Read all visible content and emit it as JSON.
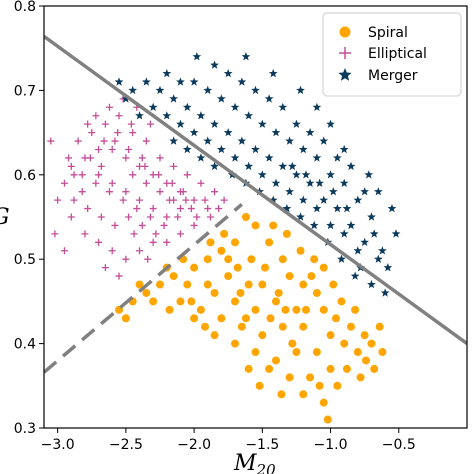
{
  "chart_data": {
    "type": "scatter",
    "title": "",
    "xlabel": "M",
    "xlabel_sub": "20",
    "ylabel": "G",
    "xlim": [
      -3.1,
      0.0
    ],
    "ylim": [
      0.3,
      0.8
    ],
    "xticks": [
      "-3.0",
      "-2.5",
      "-2.0",
      "-1.5",
      "-1.0",
      "-0.5"
    ],
    "yticks": [
      "0.3",
      "0.4",
      "0.5",
      "0.6",
      "0.7",
      "0.8"
    ],
    "grid": false,
    "legend": {
      "placement": "top-right",
      "entries": [
        {
          "name": "Spiral",
          "marker": "circle",
          "color": "#FFA500"
        },
        {
          "name": "Elliptical",
          "marker": "plus",
          "color": "#C44E98"
        },
        {
          "name": "Merger",
          "marker": "star",
          "color": "#0B3A5C"
        }
      ]
    },
    "series": [
      {
        "name": "Spiral",
        "marker": "circle",
        "color": "#FFA500",
        "points": [
          [
            -1.62,
            0.55
          ],
          [
            -1.55,
            0.54
          ],
          [
            -1.7,
            0.52
          ],
          [
            -1.8,
            0.51
          ],
          [
            -1.45,
            0.52
          ],
          [
            -1.35,
            0.5
          ],
          [
            -1.9,
            0.5
          ],
          [
            -2.0,
            0.49
          ],
          [
            -1.75,
            0.48
          ],
          [
            -1.6,
            0.47
          ],
          [
            -1.48,
            0.49
          ],
          [
            -1.3,
            0.48
          ],
          [
            -1.2,
            0.47
          ],
          [
            -1.1,
            0.46
          ],
          [
            -1.05,
            0.44
          ],
          [
            -1.25,
            0.44
          ],
          [
            -1.4,
            0.45
          ],
          [
            -1.55,
            0.44
          ],
          [
            -1.7,
            0.45
          ],
          [
            -1.85,
            0.46
          ],
          [
            -2.05,
            0.47
          ],
          [
            -2.15,
            0.48
          ],
          [
            -2.25,
            0.47
          ],
          [
            -2.35,
            0.46
          ],
          [
            -1.95,
            0.44
          ],
          [
            -1.8,
            0.43
          ],
          [
            -1.65,
            0.42
          ],
          [
            -1.5,
            0.41
          ],
          [
            -1.35,
            0.42
          ],
          [
            -1.2,
            0.42
          ],
          [
            -1.0,
            0.41
          ],
          [
            -0.9,
            0.4
          ],
          [
            -0.85,
            0.42
          ],
          [
            -0.8,
            0.39
          ],
          [
            -0.75,
            0.41
          ],
          [
            -0.7,
            0.4
          ],
          [
            -0.62,
            0.39
          ],
          [
            -1.1,
            0.39
          ],
          [
            -1.25,
            0.39
          ],
          [
            -1.4,
            0.38
          ],
          [
            -1.55,
            0.39
          ],
          [
            -1.7,
            0.4
          ],
          [
            -1.85,
            0.41
          ],
          [
            -2.0,
            0.43
          ],
          [
            -2.1,
            0.45
          ],
          [
            -1.3,
            0.36
          ],
          [
            -1.15,
            0.36
          ],
          [
            -1.0,
            0.37
          ],
          [
            -0.95,
            0.35
          ],
          [
            -1.05,
            0.33
          ],
          [
            -1.02,
            0.31
          ],
          [
            -1.45,
            0.37
          ],
          [
            -1.6,
            0.37
          ],
          [
            -0.88,
            0.37
          ],
          [
            -0.78,
            0.36
          ],
          [
            -0.68,
            0.37
          ],
          [
            -2.45,
            0.45
          ],
          [
            -2.55,
            0.44
          ],
          [
            -2.5,
            0.43
          ],
          [
            -1.75,
            0.5
          ],
          [
            -1.5,
            0.47
          ],
          [
            -1.38,
            0.46
          ],
          [
            -1.12,
            0.5
          ],
          [
            -1.05,
            0.49
          ],
          [
            -0.98,
            0.47
          ],
          [
            -0.92,
            0.45
          ],
          [
            -0.82,
            0.44
          ],
          [
            -1.9,
            0.47
          ],
          [
            -2.18,
            0.44
          ],
          [
            -2.3,
            0.45
          ],
          [
            -1.22,
            0.51
          ],
          [
            -1.32,
            0.53
          ],
          [
            -1.42,
            0.54
          ],
          [
            -1.58,
            0.5
          ],
          [
            -1.68,
            0.49
          ],
          [
            -1.78,
            0.53
          ],
          [
            -1.88,
            0.52
          ],
          [
            -2.08,
            0.5
          ],
          [
            -2.2,
            0.49
          ],
          [
            -1.28,
            0.4
          ],
          [
            -1.62,
            0.43
          ],
          [
            -1.44,
            0.43
          ],
          [
            -1.18,
            0.44
          ],
          [
            -0.96,
            0.43
          ],
          [
            -0.74,
            0.38
          ],
          [
            -0.64,
            0.42
          ],
          [
            -1.36,
            0.34
          ],
          [
            -1.52,
            0.35
          ],
          [
            -1.2,
            0.34
          ],
          [
            -1.08,
            0.35
          ],
          [
            -1.92,
            0.42
          ],
          [
            -2.02,
            0.45
          ],
          [
            -2.4,
            0.47
          ],
          [
            -1.66,
            0.46
          ],
          [
            -1.33,
            0.44
          ],
          [
            -1.14,
            0.48
          ]
        ]
      },
      {
        "name": "Elliptical",
        "marker": "plus",
        "color": "#C44E98",
        "points": [
          [
            -2.9,
            0.61
          ],
          [
            -2.8,
            0.62
          ],
          [
            -2.7,
            0.6
          ],
          [
            -2.6,
            0.59
          ],
          [
            -2.5,
            0.58
          ],
          [
            -2.4,
            0.57
          ],
          [
            -2.3,
            0.56
          ],
          [
            -2.2,
            0.55
          ],
          [
            -2.1,
            0.56
          ],
          [
            -2.0,
            0.57
          ],
          [
            -1.9,
            0.56
          ],
          [
            -2.85,
            0.64
          ],
          [
            -2.75,
            0.65
          ],
          [
            -2.65,
            0.66
          ],
          [
            -2.55,
            0.67
          ],
          [
            -2.45,
            0.65
          ],
          [
            -2.35,
            0.64
          ],
          [
            -2.25,
            0.62
          ],
          [
            -2.15,
            0.61
          ],
          [
            -2.05,
            0.6
          ],
          [
            -1.95,
            0.59
          ],
          [
            -1.85,
            0.58
          ],
          [
            -2.7,
            0.63
          ],
          [
            -2.6,
            0.63
          ],
          [
            -2.5,
            0.62
          ],
          [
            -2.4,
            0.61
          ],
          [
            -2.3,
            0.6
          ],
          [
            -2.2,
            0.59
          ],
          [
            -2.1,
            0.58
          ],
          [
            -2.0,
            0.54
          ],
          [
            -2.1,
            0.53
          ],
          [
            -2.2,
            0.52
          ],
          [
            -2.3,
            0.52
          ],
          [
            -2.4,
            0.51
          ],
          [
            -2.5,
            0.5
          ],
          [
            -2.6,
            0.51
          ],
          [
            -2.7,
            0.52
          ],
          [
            -2.8,
            0.53
          ],
          [
            -2.9,
            0.55
          ],
          [
            -3.0,
            0.57
          ],
          [
            -2.95,
            0.59
          ],
          [
            -2.88,
            0.57
          ],
          [
            -2.78,
            0.56
          ],
          [
            -2.68,
            0.55
          ],
          [
            -2.58,
            0.54
          ],
          [
            -2.48,
            0.55
          ],
          [
            -2.38,
            0.54
          ],
          [
            -2.28,
            0.53
          ],
          [
            -2.18,
            0.57
          ],
          [
            -2.08,
            0.58
          ],
          [
            -1.98,
            0.55
          ],
          [
            -1.88,
            0.55
          ],
          [
            -1.78,
            0.57
          ],
          [
            -2.62,
            0.68
          ],
          [
            -2.52,
            0.69
          ],
          [
            -2.42,
            0.68
          ],
          [
            -2.32,
            0.66
          ],
          [
            -2.72,
            0.67
          ],
          [
            -2.82,
            0.6
          ],
          [
            -2.92,
            0.62
          ],
          [
            -3.05,
            0.64
          ],
          [
            -3.02,
            0.53
          ],
          [
            -2.95,
            0.51
          ],
          [
            -2.65,
            0.49
          ],
          [
            -2.55,
            0.48
          ],
          [
            -2.45,
            0.6
          ],
          [
            -2.35,
            0.59
          ],
          [
            -2.25,
            0.58
          ],
          [
            -2.15,
            0.57
          ],
          [
            -2.58,
            0.64
          ],
          [
            -2.48,
            0.63
          ],
          [
            -2.78,
            0.66
          ],
          [
            -2.68,
            0.61
          ],
          [
            -2.38,
            0.62
          ],
          [
            -2.12,
            0.55
          ],
          [
            -2.02,
            0.56
          ],
          [
            -1.92,
            0.57
          ],
          [
            -1.82,
            0.56
          ],
          [
            -2.22,
            0.54
          ],
          [
            -2.32,
            0.55
          ],
          [
            -2.42,
            0.56
          ],
          [
            -2.52,
            0.57
          ],
          [
            -2.62,
            0.58
          ],
          [
            -2.72,
            0.59
          ],
          [
            -2.82,
            0.58
          ],
          [
            -2.88,
            0.6
          ],
          [
            -2.76,
            0.62
          ],
          [
            -2.66,
            0.64
          ],
          [
            -2.56,
            0.65
          ],
          [
            -2.46,
            0.66
          ],
          [
            -2.36,
            0.61
          ],
          [
            -2.26,
            0.6
          ],
          [
            -2.16,
            0.59
          ],
          [
            -2.06,
            0.57
          ],
          [
            -2.44,
            0.53
          ],
          [
            -2.34,
            0.5
          ]
        ]
      },
      {
        "name": "Merger",
        "marker": "star",
        "color": "#0B3A5C",
        "points": [
          [
            -2.45,
            0.7
          ],
          [
            -2.35,
            0.71
          ],
          [
            -2.25,
            0.7
          ],
          [
            -2.15,
            0.69
          ],
          [
            -2.05,
            0.68
          ],
          [
            -1.95,
            0.67
          ],
          [
            -1.85,
            0.66
          ],
          [
            -1.75,
            0.65
          ],
          [
            -1.65,
            0.64
          ],
          [
            -1.55,
            0.63
          ],
          [
            -1.45,
            0.62
          ],
          [
            -1.35,
            0.61
          ],
          [
            -1.25,
            0.6
          ],
          [
            -1.15,
            0.59
          ],
          [
            -1.05,
            0.57
          ],
          [
            -0.95,
            0.56
          ],
          [
            -0.85,
            0.54
          ],
          [
            -0.75,
            0.52
          ],
          [
            -0.65,
            0.5
          ],
          [
            -0.58,
            0.49
          ],
          [
            -2.2,
            0.72
          ],
          [
            -2.1,
            0.71
          ],
          [
            -2.0,
            0.71
          ],
          [
            -1.9,
            0.7
          ],
          [
            -1.8,
            0.69
          ],
          [
            -1.7,
            0.68
          ],
          [
            -1.6,
            0.67
          ],
          [
            -1.5,
            0.66
          ],
          [
            -1.4,
            0.65
          ],
          [
            -1.3,
            0.64
          ],
          [
            -1.2,
            0.63
          ],
          [
            -1.1,
            0.62
          ],
          [
            -1.0,
            0.6
          ],
          [
            -0.9,
            0.59
          ],
          [
            -0.8,
            0.57
          ],
          [
            -0.7,
            0.55
          ],
          [
            -2.3,
            0.68
          ],
          [
            -2.2,
            0.67
          ],
          [
            -2.1,
            0.66
          ],
          [
            -2.0,
            0.65
          ],
          [
            -1.9,
            0.64
          ],
          [
            -1.8,
            0.63
          ],
          [
            -1.7,
            0.62
          ],
          [
            -1.6,
            0.61
          ],
          [
            -1.5,
            0.6
          ],
          [
            -1.4,
            0.59
          ],
          [
            -1.3,
            0.58
          ],
          [
            -1.2,
            0.57
          ],
          [
            -1.1,
            0.56
          ],
          [
            -1.0,
            0.54
          ],
          [
            -0.9,
            0.53
          ],
          [
            -0.8,
            0.51
          ],
          [
            -1.85,
            0.73
          ],
          [
            -1.75,
            0.72
          ],
          [
            -1.65,
            0.71
          ],
          [
            -1.55,
            0.7
          ],
          [
            -1.45,
            0.69
          ],
          [
            -1.35,
            0.68
          ],
          [
            -1.25,
            0.66
          ],
          [
            -1.15,
            0.65
          ],
          [
            -1.05,
            0.64
          ],
          [
            -0.95,
            0.62
          ],
          [
            -0.85,
            0.61
          ],
          [
            -0.75,
            0.58
          ],
          [
            -1.1,
            0.68
          ],
          [
            -1.0,
            0.66
          ],
          [
            -0.9,
            0.63
          ],
          [
            -1.98,
            0.74
          ],
          [
            -1.62,
            0.74
          ],
          [
            -1.42,
            0.72
          ],
          [
            -1.22,
            0.7
          ],
          [
            -0.55,
            0.56
          ],
          [
            -0.52,
            0.53
          ],
          [
            -0.6,
            0.46
          ],
          [
            -0.65,
            0.58
          ],
          [
            -0.72,
            0.6
          ],
          [
            -0.68,
            0.53
          ],
          [
            -1.72,
            0.6
          ],
          [
            -1.62,
            0.59
          ],
          [
            -1.52,
            0.58
          ],
          [
            -1.42,
            0.57
          ],
          [
            -1.32,
            0.56
          ],
          [
            -1.22,
            0.55
          ],
          [
            -1.12,
            0.54
          ],
          [
            -1.02,
            0.52
          ],
          [
            -0.92,
            0.5
          ],
          [
            -0.82,
            0.48
          ],
          [
            -2.4,
            0.67
          ],
          [
            -2.5,
            0.69
          ],
          [
            -2.55,
            0.71
          ],
          [
            -0.78,
            0.49
          ],
          [
            -0.7,
            0.47
          ],
          [
            -1.95,
            0.62
          ],
          [
            -1.85,
            0.61
          ],
          [
            -2.05,
            0.63
          ],
          [
            -2.15,
            0.64
          ],
          [
            -1.28,
            0.61
          ],
          [
            -1.18,
            0.6
          ],
          [
            -1.08,
            0.59
          ],
          [
            -0.98,
            0.58
          ],
          [
            -0.88,
            0.56
          ],
          [
            -0.62,
            0.51
          ]
        ]
      }
    ],
    "boundary_lines": [
      {
        "style": "solid",
        "color": "#808080",
        "from": [
          -3.1,
          0.764
        ],
        "to": [
          0.0,
          0.4
        ]
      },
      {
        "style": "dashed",
        "color": "#808080",
        "from": [
          -3.1,
          0.366
        ],
        "to": [
          -1.65,
          0.565
        ]
      }
    ]
  }
}
